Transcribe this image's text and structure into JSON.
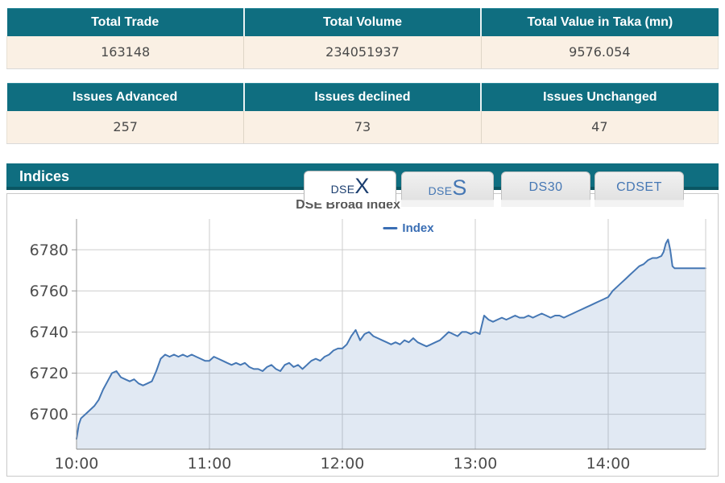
{
  "summary_tables": {
    "trade": {
      "headers": [
        "Total Trade",
        "Total Volume",
        "Total Value in Taka (mn)"
      ],
      "values": [
        "163148",
        "234051937",
        "9576.054"
      ]
    },
    "issues": {
      "headers": [
        "Issues Advanced",
        "Issues declined",
        "Issues Unchanged"
      ],
      "values": [
        "257",
        "73",
        "47"
      ]
    }
  },
  "indices": {
    "title": "Indices",
    "tabs": [
      {
        "name": "DSEX",
        "small": "DSE",
        "large": "X",
        "active": true
      },
      {
        "name": "DSES",
        "small": "DSE",
        "large": "S",
        "active": false
      },
      {
        "name": "DS30",
        "mid": "DS30",
        "active": false
      },
      {
        "name": "CDSET",
        "mid": "CDSET",
        "active": false
      }
    ]
  },
  "colors": {
    "teal_header": "#0F6E80",
    "teal_dark_edge": "#0A5663",
    "row_cream": "#FAF0E4",
    "text_dark": "#4A4A4A",
    "line_blue": "#4577B4",
    "area_fill": "rgba(69,119,180,0.16)",
    "grid": "#CDCDCD",
    "axis": "#9A9A9A",
    "legend_blue": "#3A6EB4"
  },
  "chart_data": {
    "type": "area",
    "title": "DSE Broad Index",
    "legend_label": "Index",
    "legend_position": "top-center",
    "grid": true,
    "x_unit": "minutes after 10:00",
    "x_domain": [
      0,
      284
    ],
    "y_domain": [
      6683,
      6795
    ],
    "x_ticks": [
      {
        "m": 0,
        "label": "10:00"
      },
      {
        "m": 60,
        "label": "11:00"
      },
      {
        "m": 120,
        "label": "12:00"
      },
      {
        "m": 180,
        "label": "13:00"
      },
      {
        "m": 240,
        "label": "14:00"
      }
    ],
    "y_ticks": [
      6700,
      6720,
      6740,
      6760,
      6780
    ],
    "points": [
      [
        0,
        6688
      ],
      [
        1,
        6695
      ],
      [
        2,
        6698
      ],
      [
        4,
        6700
      ],
      [
        6,
        6702
      ],
      [
        8,
        6704
      ],
      [
        10,
        6707
      ],
      [
        12,
        6712
      ],
      [
        14,
        6716
      ],
      [
        16,
        6720
      ],
      [
        18,
        6721
      ],
      [
        20,
        6718
      ],
      [
        22,
        6717
      ],
      [
        24,
        6716
      ],
      [
        26,
        6717
      ],
      [
        28,
        6715
      ],
      [
        30,
        6714
      ],
      [
        32,
        6715
      ],
      [
        34,
        6716
      ],
      [
        36,
        6721
      ],
      [
        38,
        6727
      ],
      [
        40,
        6729
      ],
      [
        42,
        6728
      ],
      [
        44,
        6729
      ],
      [
        46,
        6728
      ],
      [
        48,
        6729
      ],
      [
        50,
        6728
      ],
      [
        52,
        6729
      ],
      [
        54,
        6728
      ],
      [
        56,
        6727
      ],
      [
        58,
        6726
      ],
      [
        60,
        6726
      ],
      [
        62,
        6728
      ],
      [
        64,
        6727
      ],
      [
        66,
        6726
      ],
      [
        68,
        6725
      ],
      [
        70,
        6724
      ],
      [
        72,
        6725
      ],
      [
        74,
        6724
      ],
      [
        76,
        6725
      ],
      [
        78,
        6723
      ],
      [
        80,
        6722
      ],
      [
        82,
        6722
      ],
      [
        84,
        6721
      ],
      [
        86,
        6723
      ],
      [
        88,
        6724
      ],
      [
        90,
        6722
      ],
      [
        92,
        6721
      ],
      [
        94,
        6724
      ],
      [
        96,
        6725
      ],
      [
        98,
        6723
      ],
      [
        100,
        6724
      ],
      [
        102,
        6722
      ],
      [
        104,
        6724
      ],
      [
        106,
        6726
      ],
      [
        108,
        6727
      ],
      [
        110,
        6726
      ],
      [
        112,
        6728
      ],
      [
        114,
        6729
      ],
      [
        116,
        6731
      ],
      [
        118,
        6732
      ],
      [
        120,
        6732
      ],
      [
        122,
        6734
      ],
      [
        124,
        6738
      ],
      [
        126,
        6741
      ],
      [
        128,
        6736
      ],
      [
        130,
        6739
      ],
      [
        132,
        6740
      ],
      [
        134,
        6738
      ],
      [
        136,
        6737
      ],
      [
        138,
        6736
      ],
      [
        140,
        6735
      ],
      [
        142,
        6734
      ],
      [
        144,
        6735
      ],
      [
        146,
        6734
      ],
      [
        148,
        6736
      ],
      [
        150,
        6735
      ],
      [
        152,
        6737
      ],
      [
        154,
        6735
      ],
      [
        156,
        6734
      ],
      [
        158,
        6733
      ],
      [
        160,
        6734
      ],
      [
        162,
        6735
      ],
      [
        164,
        6736
      ],
      [
        166,
        6738
      ],
      [
        168,
        6740
      ],
      [
        170,
        6739
      ],
      [
        172,
        6738
      ],
      [
        174,
        6740
      ],
      [
        176,
        6740
      ],
      [
        178,
        6739
      ],
      [
        180,
        6740
      ],
      [
        182,
        6739
      ],
      [
        184,
        6748
      ],
      [
        186,
        6746
      ],
      [
        188,
        6745
      ],
      [
        190,
        6746
      ],
      [
        192,
        6747
      ],
      [
        194,
        6746
      ],
      [
        196,
        6747
      ],
      [
        198,
        6748
      ],
      [
        200,
        6747
      ],
      [
        202,
        6747
      ],
      [
        204,
        6748
      ],
      [
        206,
        6747
      ],
      [
        208,
        6748
      ],
      [
        210,
        6749
      ],
      [
        212,
        6748
      ],
      [
        214,
        6747
      ],
      [
        216,
        6748
      ],
      [
        218,
        6748
      ],
      [
        220,
        6747
      ],
      [
        222,
        6748
      ],
      [
        224,
        6749
      ],
      [
        226,
        6750
      ],
      [
        228,
        6751
      ],
      [
        230,
        6752
      ],
      [
        232,
        6753
      ],
      [
        234,
        6754
      ],
      [
        236,
        6755
      ],
      [
        238,
        6756
      ],
      [
        240,
        6757
      ],
      [
        242,
        6760
      ],
      [
        244,
        6762
      ],
      [
        246,
        6764
      ],
      [
        248,
        6766
      ],
      [
        250,
        6768
      ],
      [
        252,
        6770
      ],
      [
        254,
        6772
      ],
      [
        256,
        6773
      ],
      [
        258,
        6775
      ],
      [
        260,
        6776
      ],
      [
        262,
        6776
      ],
      [
        264,
        6777
      ],
      [
        265,
        6779
      ],
      [
        266,
        6783
      ],
      [
        267,
        6785
      ],
      [
        268,
        6780
      ],
      [
        269,
        6772
      ],
      [
        270,
        6771
      ],
      [
        273,
        6771
      ],
      [
        276,
        6771
      ],
      [
        279,
        6771
      ],
      [
        282,
        6771
      ],
      [
        284,
        6771
      ]
    ]
  }
}
